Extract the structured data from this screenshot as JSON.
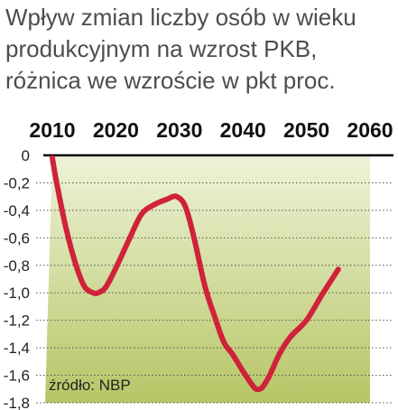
{
  "title_lines": [
    "Wpływ zmian liczby osób w wieku",
    "produkcyjnym na wzrost PKB,",
    "różnica we wzroście w pkt proc."
  ],
  "source": "źródło: NBP",
  "chart_data": {
    "type": "line",
    "title": "Wpływ zmian liczby osób w wieku produkcyjnym na wzrost PKB, różnica we wzroście w pkt proc.",
    "xlabel": "",
    "ylabel": "",
    "x_ticks": [
      "2010",
      "2020",
      "2030",
      "2040",
      "2050",
      "2060"
    ],
    "y_ticks": [
      "0",
      "-0,2",
      "-0,4",
      "-0,6",
      "-0,8",
      "-1,0",
      "-1,2",
      "-1,4",
      "-1,6",
      "-1,8"
    ],
    "xlim": [
      2010,
      2060
    ],
    "ylim": [
      -1.8,
      0
    ],
    "grid": "horizontal dotted",
    "colors": {
      "line": "#d0223a",
      "fill_top": "#eef3d8",
      "fill_bottom": "#b7c566",
      "zero_line": "#000000"
    },
    "series": [
      {
        "x": [
          2010.0,
          2010.6,
          2012.0,
          2013.6,
          2015.0,
          2016.4,
          2017.2,
          2018.4,
          2020.0,
          2022.0,
          2024.0,
          2026.0,
          2028.0,
          2029.6,
          2031.0,
          2032.4,
          2034.0,
          2035.6,
          2037.0,
          2038.4,
          2040.0,
          2041.8,
          2042.6,
          2043.2,
          2044.2,
          2045.8,
          2047.5,
          2050.0,
          2052.5,
          2055.0
        ],
        "y": [
          -0.02,
          -0.18,
          -0.5,
          -0.78,
          -0.95,
          -1.0,
          -1.0,
          -0.96,
          -0.82,
          -0.62,
          -0.43,
          -0.36,
          -0.32,
          -0.3,
          -0.38,
          -0.62,
          -0.95,
          -1.18,
          -1.36,
          -1.45,
          -1.57,
          -1.69,
          -1.7,
          -1.68,
          -1.6,
          -1.44,
          -1.32,
          -1.2,
          -1.01,
          -0.83
        ]
      }
    ]
  }
}
